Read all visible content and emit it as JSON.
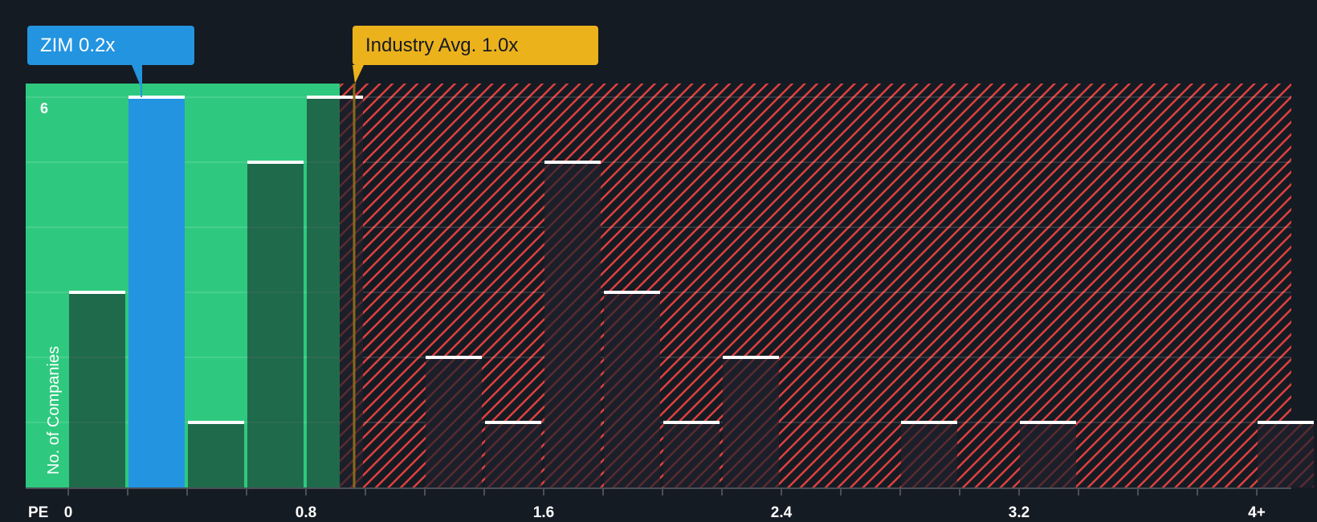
{
  "callouts": {
    "company": {
      "label": "ZIM 0.2x",
      "value": 0.2,
      "color": "#2394e0"
    },
    "industry": {
      "label": "Industry Avg. 1.0x",
      "value": 1.0,
      "color": "#ecb21c"
    }
  },
  "axis": {
    "x_title": "PE",
    "y_title": "No. of Companies",
    "y_tick_label": "6",
    "x_ticks": [
      {
        "label": "0",
        "value": 0
      },
      {
        "label": "0.8",
        "value": 0.8
      },
      {
        "label": "1.6",
        "value": 1.6
      },
      {
        "label": "2.4",
        "value": 2.4
      },
      {
        "label": "3.2",
        "value": 3.2
      },
      {
        "label": "4+",
        "value": 4.0
      }
    ]
  },
  "colors": {
    "background": "#151b23",
    "good_zone": "#2ec97e",
    "bad_zone_hatch": "#e0403f",
    "highlight_bar": "#2394e0",
    "industry_line": "#ecb21c"
  },
  "chart_data": {
    "type": "bar",
    "title": "",
    "xlabel": "PE",
    "ylabel": "No. of Companies",
    "ylim": [
      0,
      6
    ],
    "categories": [
      "0-0.2",
      "0.2-0.4",
      "0.4-0.6",
      "0.6-0.8",
      "0.8-1.0",
      "1.0-1.2",
      "1.2-1.4",
      "1.4-1.6",
      "1.6-1.8",
      "1.8-2.0",
      "2.0-2.2",
      "2.2-2.4",
      "2.4-2.6",
      "2.6-2.8",
      "2.8-3.0",
      "3.0-3.2",
      "3.2-3.4",
      "3.4-3.6",
      "3.6-3.8",
      "3.8-4.0",
      "4+"
    ],
    "values": [
      3,
      6,
      1,
      5,
      6,
      0,
      2,
      1,
      5,
      3,
      1,
      2,
      0,
      0,
      1,
      0,
      1,
      0,
      0,
      0,
      1
    ],
    "highlight_category": "0.2-0.4",
    "highlight_label": "ZIM 0.2x",
    "reference_line": {
      "label": "Industry Avg. 1.0x",
      "value": 1.0
    },
    "x_tick_labels": [
      "0",
      "0.8",
      "1.6",
      "2.4",
      "3.2",
      "4+"
    ],
    "y_tick_labels": [
      "6"
    ],
    "grid": true
  }
}
